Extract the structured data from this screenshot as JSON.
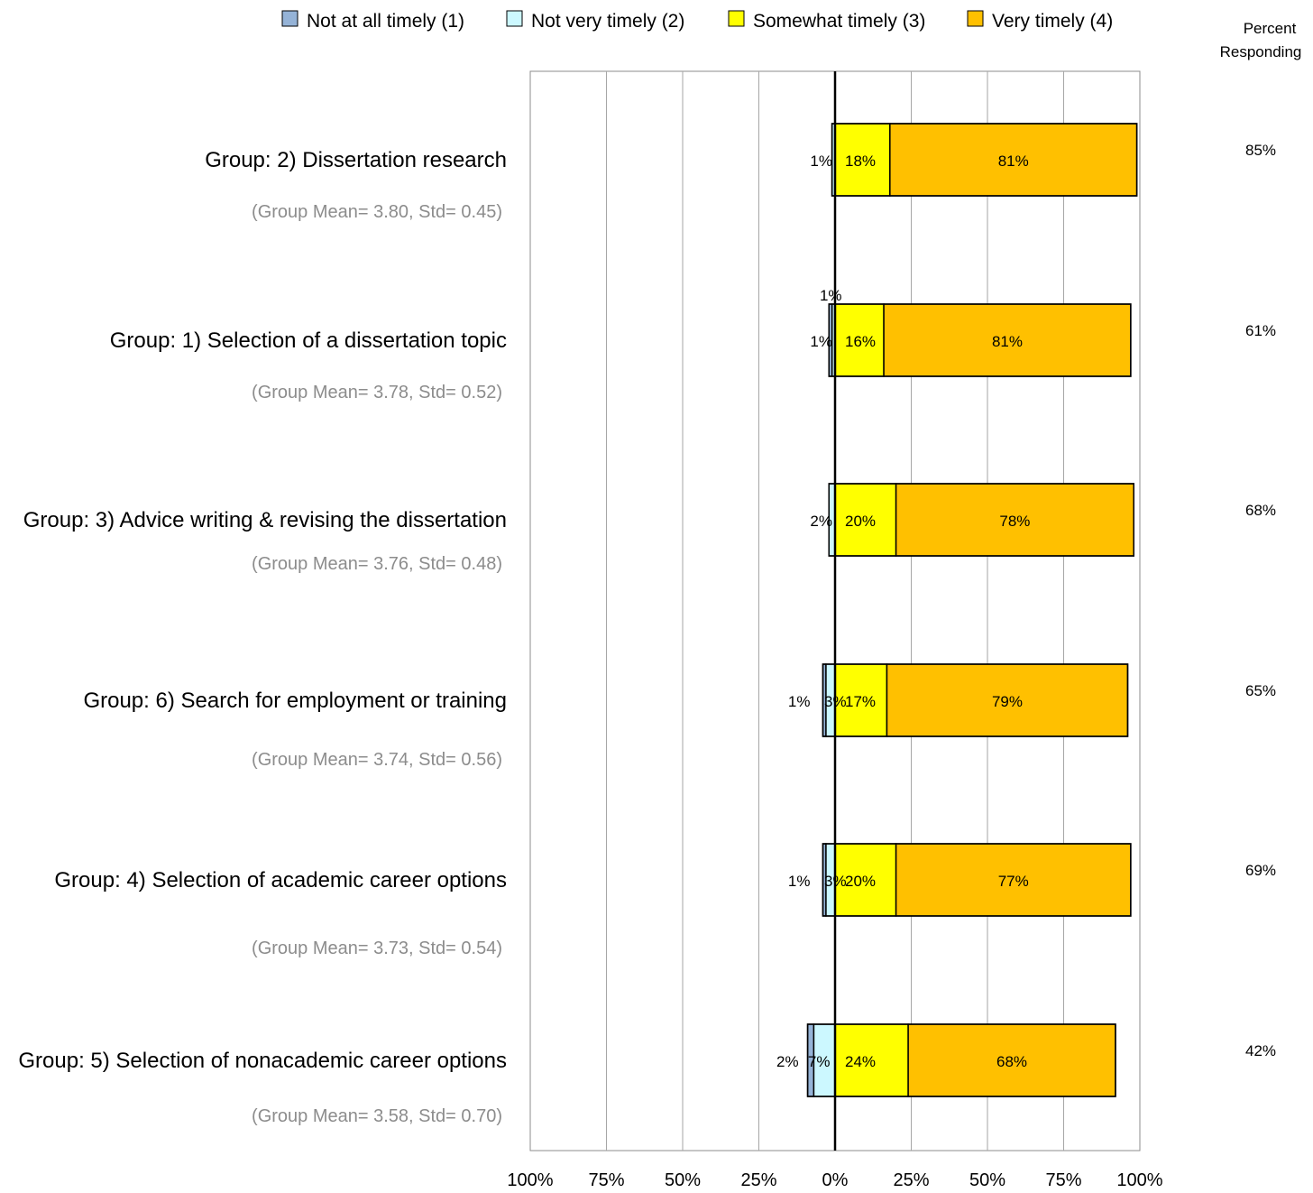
{
  "chart_data": {
    "type": "bar",
    "orientation": "horizontal",
    "stacked": "diverging",
    "legend": {
      "placement": "top",
      "entries": [
        {
          "name": "Not at all timely (1)",
          "color": "#95b3d7"
        },
        {
          "name": "Not very timely (2)",
          "color": "#ccf8ff"
        },
        {
          "name": "Somewhat timely (3)",
          "color": "#ffff00"
        },
        {
          "name": "Very timely (4)",
          "color": "#ffc000"
        }
      ]
    },
    "percent_responding_header": [
      "Percent",
      "Responding"
    ],
    "x_ticks": [
      "100%",
      "75%",
      "50%",
      "25%",
      "0%",
      "25%",
      "50%",
      "75%",
      "100%"
    ],
    "xlim": [
      -100,
      100
    ],
    "grid": true,
    "groups": [
      {
        "label": "Group: 2) Dissertation research",
        "stats": "(Group Mean= 3.80, Std= 0.45)",
        "values": [
          0,
          1,
          18,
          81
        ],
        "labels": [
          "",
          "1%",
          "18%",
          "81%"
        ],
        "percent_responding": "85%"
      },
      {
        "label": "Group: 1) Selection of a dissertation topic",
        "stats": "(Group Mean= 3.78, Std= 0.52)",
        "values": [
          1,
          1,
          16,
          81
        ],
        "labels": [
          "1%",
          "1%",
          "16%",
          "81%"
        ],
        "percent_responding": "61%"
      },
      {
        "label": "Group: 3) Advice writing & revising the dissertation",
        "stats": "(Group Mean= 3.76, Std= 0.48)",
        "values": [
          0,
          2,
          20,
          78
        ],
        "labels": [
          "",
          "2%",
          "20%",
          "78%"
        ],
        "percent_responding": "68%"
      },
      {
        "label": "Group: 6) Search for employment or training",
        "stats": "(Group Mean= 3.74, Std= 0.56)",
        "values": [
          1,
          3,
          17,
          79
        ],
        "labels": [
          "1%",
          "3%",
          "17%",
          "79%"
        ],
        "percent_responding": "65%"
      },
      {
        "label": "Group: 4) Selection of academic career options",
        "stats": "(Group Mean= 3.73, Std= 0.54)",
        "values": [
          1,
          3,
          20,
          77
        ],
        "labels": [
          "1%",
          "3%",
          "20%",
          "77%"
        ],
        "percent_responding": "69%"
      },
      {
        "label": "Group: 5) Selection of nonacademic career options",
        "stats": "(Group Mean= 3.58, Std= 0.70)",
        "values": [
          2,
          7,
          24,
          68
        ],
        "labels": [
          "2%",
          "7%",
          "24%",
          "68%"
        ],
        "percent_responding": "42%"
      }
    ]
  }
}
